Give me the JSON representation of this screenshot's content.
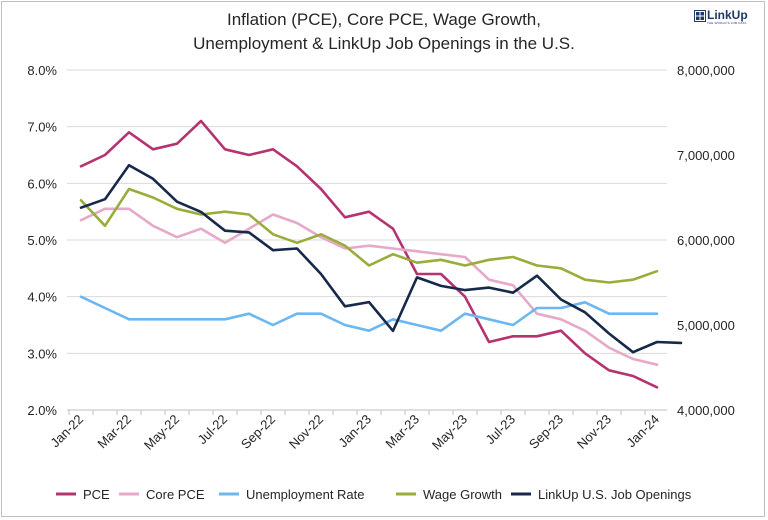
{
  "header": {
    "title_line1": "Inflation (PCE), Core PCE, Wage Growth,",
    "title_line2": "Unemployment & LinkUp Job Openings in the U.S.",
    "logo_text": "LinkUp",
    "logo_subtext": "THE WORLD'S JOB DATA"
  },
  "colors": {
    "pce": "#b5336f",
    "core_pce": "#e6a9c7",
    "unemployment": "#6cb7f0",
    "wage": "#98ad3a",
    "openings": "#16294a",
    "logo": "#1f3864"
  },
  "chart_data": {
    "type": "line",
    "title": "Inflation (PCE), Core PCE, Wage Growth, Unemployment & LinkUp Job Openings in the U.S.",
    "x": [
      "Jan-22",
      "Feb-22",
      "Mar-22",
      "Apr-22",
      "May-22",
      "Jun-22",
      "Jul-22",
      "Aug-22",
      "Sep-22",
      "Oct-22",
      "Nov-22",
      "Dec-22",
      "Jan-23",
      "Feb-23",
      "Mar-23",
      "Apr-23",
      "May-23",
      "Jun-23",
      "Jul-23",
      "Aug-23",
      "Sep-23",
      "Oct-23",
      "Nov-23",
      "Dec-23",
      "Jan-24",
      "Feb-24"
    ],
    "x_tick_labels": [
      "Jan-22",
      "Mar-22",
      "May-22",
      "Jul-22",
      "Sep-22",
      "Nov-22",
      "Jan-23",
      "Mar-23",
      "May-23",
      "Jul-23",
      "Sep-23",
      "Nov-23",
      "Jan-24"
    ],
    "y_left": {
      "ylim": [
        2.0,
        8.0
      ],
      "ticks": [
        "2.0%",
        "3.0%",
        "4.0%",
        "5.0%",
        "6.0%",
        "7.0%",
        "8.0%"
      ]
    },
    "y_right": {
      "ylim": [
        4000000,
        8000000
      ],
      "ticks": [
        "4,000,000",
        "5,000,000",
        "6,000,000",
        "7,000,000",
        "8,000,000"
      ]
    },
    "grid": true,
    "legend_position": "bottom",
    "series": [
      {
        "name": "PCE",
        "axis": "left",
        "color_key": "pce",
        "values": [
          6.3,
          6.5,
          6.9,
          6.6,
          6.7,
          7.1,
          6.6,
          6.5,
          6.6,
          6.3,
          5.9,
          5.4,
          5.5,
          5.2,
          4.4,
          4.4,
          4.0,
          3.2,
          3.3,
          3.3,
          3.4,
          3.0,
          2.7,
          2.6,
          2.4,
          null
        ]
      },
      {
        "name": "Core PCE",
        "axis": "left",
        "color_key": "core_pce",
        "values": [
          5.35,
          5.55,
          5.55,
          5.25,
          5.05,
          5.2,
          4.95,
          5.2,
          5.45,
          5.3,
          5.05,
          4.85,
          4.9,
          4.85,
          4.8,
          4.75,
          4.7,
          4.3,
          4.2,
          3.7,
          3.6,
          3.4,
          3.1,
          2.9,
          2.8,
          null
        ]
      },
      {
        "name": "Unemployment Rate",
        "axis": "left",
        "color_key": "unemployment",
        "values": [
          4.0,
          3.8,
          3.6,
          3.6,
          3.6,
          3.6,
          3.6,
          3.7,
          3.5,
          3.7,
          3.7,
          3.5,
          3.4,
          3.6,
          3.5,
          3.4,
          3.7,
          3.6,
          3.5,
          3.8,
          3.8,
          3.9,
          3.7,
          3.7,
          3.7,
          null
        ]
      },
      {
        "name": "Wage Growth",
        "axis": "left",
        "color_key": "wage",
        "values": [
          5.7,
          5.25,
          5.9,
          5.75,
          5.55,
          5.45,
          5.5,
          5.45,
          5.1,
          4.95,
          5.1,
          4.9,
          4.55,
          4.75,
          4.6,
          4.65,
          4.55,
          4.65,
          4.7,
          4.55,
          4.5,
          4.3,
          4.25,
          4.3,
          4.45,
          null
        ]
      },
      {
        "name": "LinkUp U.S. Job Openings",
        "axis": "right",
        "color_key": "openings",
        "values": [
          6380000,
          6480000,
          6880000,
          6720000,
          6450000,
          6330000,
          6110000,
          6090000,
          5880000,
          5900000,
          5600000,
          5220000,
          5270000,
          4930000,
          5560000,
          5460000,
          5410000,
          5440000,
          5380000,
          5580000,
          5300000,
          5150000,
          4900000,
          4680000,
          4800000,
          4790000
        ]
      }
    ]
  }
}
